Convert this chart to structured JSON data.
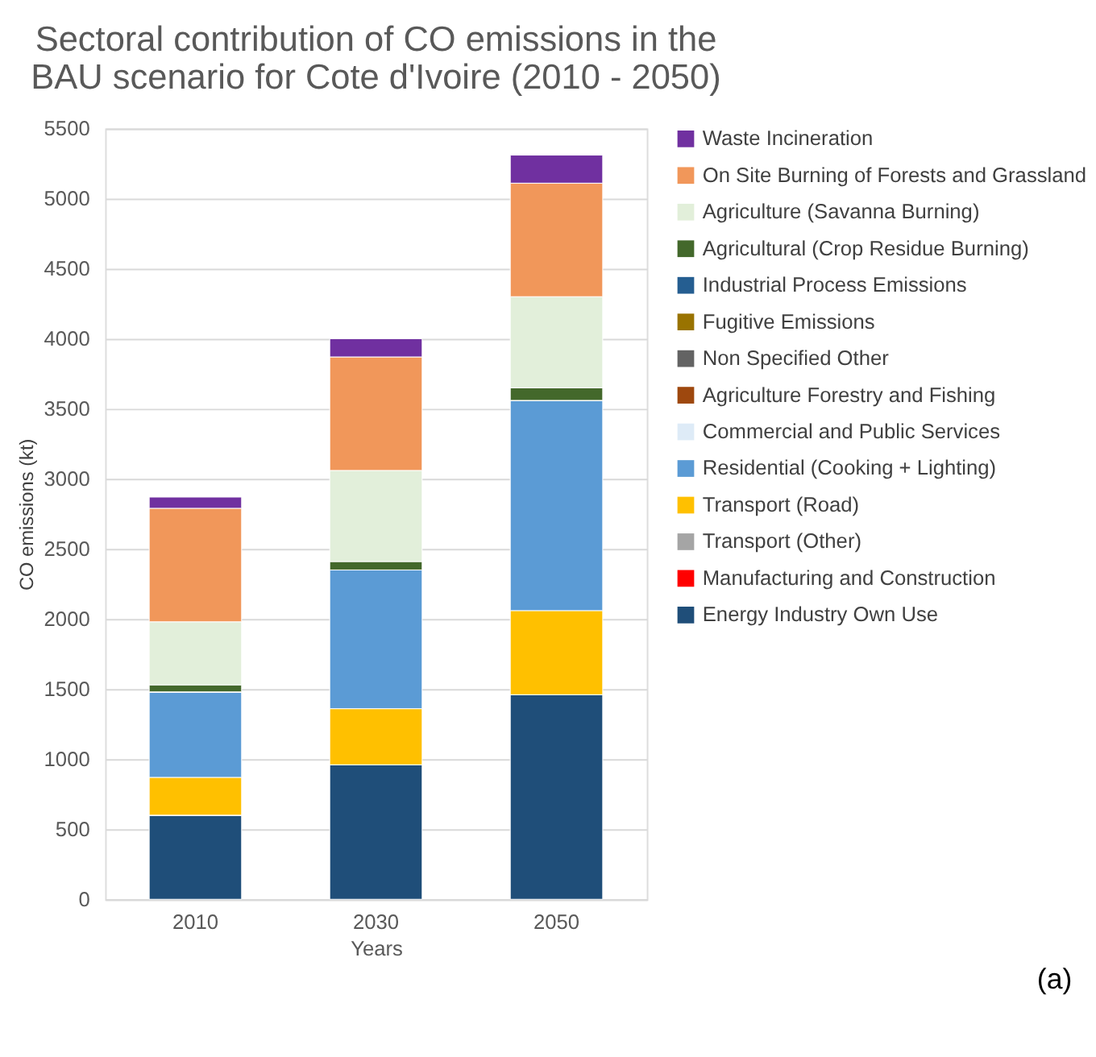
{
  "chart_data": {
    "type": "bar",
    "title": "Sectoral contribution of CO emissions in the BAU scenario for Cote d'Ivoire (2010 - 2050)",
    "xlabel": "Years",
    "ylabel": "CO emissions (kt)",
    "categories": [
      "2010",
      "2030",
      "2050"
    ],
    "stacked": true,
    "ylim": [
      0,
      5500
    ],
    "yticks": [
      0,
      500,
      1000,
      1500,
      2000,
      2500,
      3000,
      3500,
      4000,
      4500,
      5000,
      5500
    ],
    "grid": "y",
    "legend": "right",
    "annotations": [
      "(a)"
    ],
    "series": [
      {
        "name": "Energy Industry Own Use",
        "color": "#1f4e79",
        "values": [
          600,
          960,
          1460
        ]
      },
      {
        "name": "Manufacturing and Construction",
        "color": "#ff0000",
        "values": [
          0,
          0,
          0
        ]
      },
      {
        "name": "Transport (Other)",
        "color": "#a5a5a5",
        "values": [
          0,
          0,
          0
        ]
      },
      {
        "name": "Transport (Road)",
        "color": "#ffc000",
        "values": [
          270,
          400,
          600
        ]
      },
      {
        "name": "Residential (Cooking + Lighting)",
        "color": "#5b9bd5",
        "values": [
          610,
          990,
          1500
        ]
      },
      {
        "name": "Commercial and Public Services",
        "color": "#deebf7",
        "values": [
          0,
          0,
          0
        ]
      },
      {
        "name": "Agriculture Forestry and Fishing",
        "color": "#9e480e",
        "values": [
          0,
          0,
          0
        ]
      },
      {
        "name": "Non Specified Other",
        "color": "#636363",
        "values": [
          0,
          0,
          0
        ]
      },
      {
        "name": "Fugitive Emissions",
        "color": "#997300",
        "values": [
          0,
          0,
          0
        ]
      },
      {
        "name": "Industrial Process Emissions",
        "color": "#255e91",
        "values": [
          0,
          0,
          0
        ]
      },
      {
        "name": "Agricultural (Crop Residue Burning)",
        "color": "#43682b",
        "values": [
          50,
          60,
          90
        ]
      },
      {
        "name": "Agriculture (Savanna Burning)",
        "color": "#e2efda",
        "values": [
          450,
          650,
          650
        ]
      },
      {
        "name": "On Site Burning of Forests and Grassland",
        "color": "#f1975a",
        "values": [
          810,
          810,
          810
        ]
      },
      {
        "name": "Waste Incineration",
        "color": "#7030a0",
        "values": [
          80,
          130,
          200
        ]
      }
    ]
  }
}
